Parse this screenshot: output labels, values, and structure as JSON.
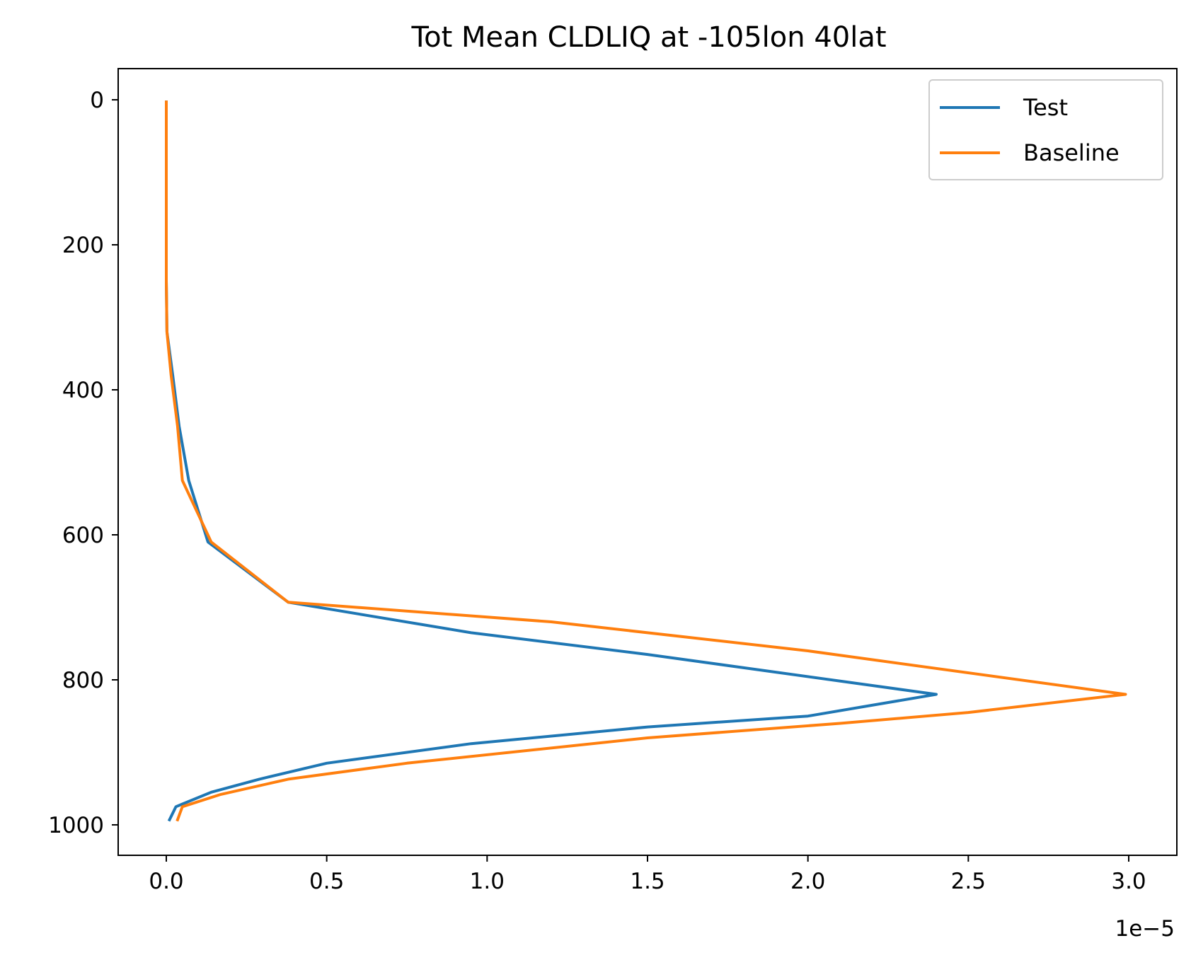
{
  "chart_data": {
    "type": "line",
    "title": "Tot Mean CLDLIQ at -105lon 40lat",
    "xlabel": "",
    "ylabel": "",
    "x_offset_label": "1e−5",
    "xlim": [
      -0.15,
      3.15
    ],
    "ylim": [
      1042,
      -43
    ],
    "y_inverted": true,
    "xticks": [
      0.0,
      0.5,
      1.0,
      1.5,
      2.0,
      2.5,
      3.0
    ],
    "xtick_labels": [
      "0.0",
      "0.5",
      "1.0",
      "1.5",
      "2.0",
      "2.5",
      "3.0"
    ],
    "yticks": [
      0,
      200,
      400,
      600,
      800,
      1000
    ],
    "ytick_labels": [
      "0",
      "200",
      "400",
      "600",
      "800",
      "1000"
    ],
    "legend": {
      "position": "top-right"
    },
    "grid": false,
    "series": [
      {
        "name": "Test",
        "color": "#1f77b4",
        "points": [
          [
            0.0,
            3
          ],
          [
            0.0,
            50
          ],
          [
            0.0,
            100
          ],
          [
            0.0,
            150
          ],
          [
            0.0,
            200
          ],
          [
            0.0,
            250
          ],
          [
            0.002,
            320
          ],
          [
            0.02,
            380
          ],
          [
            0.04,
            450
          ],
          [
            0.07,
            525
          ],
          [
            0.13,
            610
          ],
          [
            0.38,
            693
          ],
          [
            0.95,
            735
          ],
          [
            1.5,
            765
          ],
          [
            2.4,
            820
          ],
          [
            2.0,
            850
          ],
          [
            1.5,
            865
          ],
          [
            0.95,
            888
          ],
          [
            0.5,
            915
          ],
          [
            0.29,
            937
          ],
          [
            0.14,
            955
          ],
          [
            0.03,
            975
          ],
          [
            0.01,
            993
          ]
        ]
      },
      {
        "name": "Baseline",
        "color": "#ff7f0e",
        "points": [
          [
            0.0,
            3
          ],
          [
            0.0,
            50
          ],
          [
            0.0,
            100
          ],
          [
            0.0,
            150
          ],
          [
            0.0,
            200
          ],
          [
            0.0,
            250
          ],
          [
            0.002,
            320
          ],
          [
            0.015,
            380
          ],
          [
            0.035,
            450
          ],
          [
            0.05,
            525
          ],
          [
            0.14,
            610
          ],
          [
            0.38,
            693
          ],
          [
            1.2,
            720
          ],
          [
            2.0,
            760
          ],
          [
            2.99,
            820
          ],
          [
            2.5,
            845
          ],
          [
            2.1,
            860
          ],
          [
            1.5,
            880
          ],
          [
            0.75,
            915
          ],
          [
            0.38,
            937
          ],
          [
            0.17,
            958
          ],
          [
            0.05,
            975
          ],
          [
            0.035,
            993
          ]
        ]
      }
    ]
  }
}
